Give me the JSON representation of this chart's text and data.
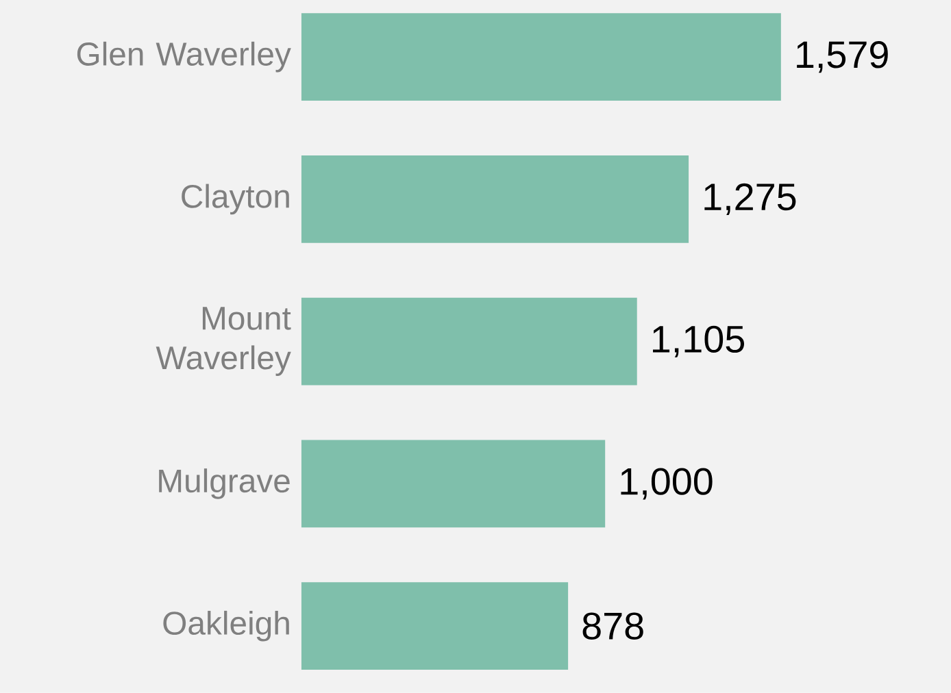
{
  "chart_data": {
    "type": "bar",
    "orientation": "horizontal",
    "categories": [
      "Glen Waverley",
      "Clayton",
      "Mount Waverley",
      "Mulgrave",
      "Oakleigh"
    ],
    "values": [
      1579,
      1275,
      1105,
      1000,
      878
    ],
    "color": "#7fbfab",
    "value_labels": [
      "1,579",
      "1,275",
      "1,105",
      "1,000",
      "878"
    ]
  }
}
